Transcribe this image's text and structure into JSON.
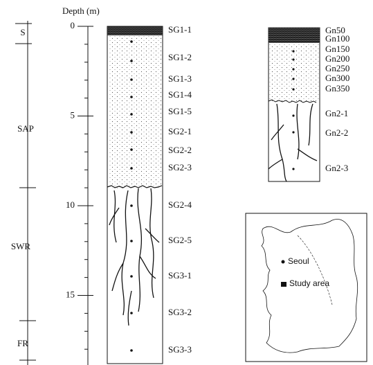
{
  "depth_axis": {
    "label": "Depth (m)",
    "ticks": [
      0,
      5,
      10,
      15
    ]
  },
  "zones": [
    "S",
    "SAP",
    "SWR",
    "FR"
  ],
  "profile_1": {
    "samples": [
      "SG1-1",
      "SG1-2",
      "SG1-3",
      "SG1-4",
      "SG1-5",
      "SG2-1",
      "SG2-2",
      "SG2-3",
      "SG2-4",
      "SG2-5",
      "SG3-1",
      "SG3-2",
      "SG3-3"
    ]
  },
  "profile_2": {
    "samples": [
      "Gn50",
      "Gn100",
      "Gn150",
      "Gn200",
      "Gn250",
      "Gn300",
      "Gn350",
      "Gn2-1",
      "Gn2-2",
      "Gn2-3"
    ]
  },
  "map": {
    "labels": [
      "Seoul",
      "Study area"
    ]
  }
}
